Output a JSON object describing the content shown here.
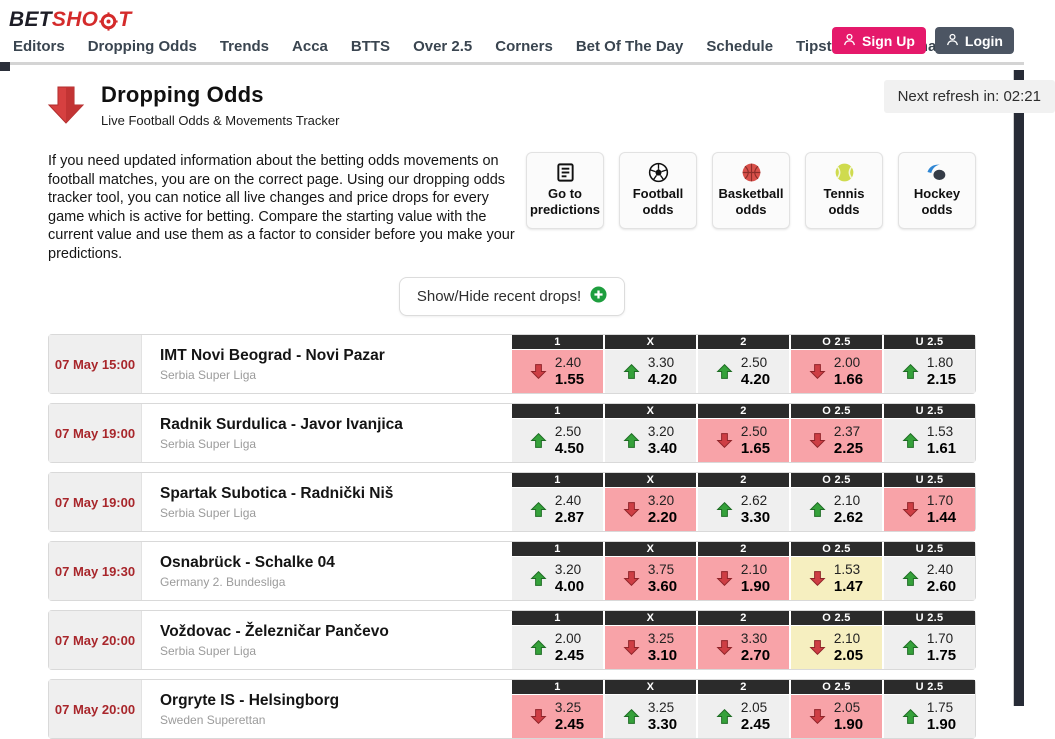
{
  "header": {
    "logo_bet": "BET",
    "logo_sho": "SHO",
    "logo_t": "T",
    "nav": [
      "Editors",
      "Dropping Odds",
      "Trends",
      "Acca",
      "BTTS",
      "Over 2.5",
      "Corners",
      "Bet Of The Day",
      "Schedule",
      "Tipsters",
      "Bookmakers"
    ],
    "signup_label": "Sign Up",
    "login_label": "Login"
  },
  "page": {
    "title": "Dropping Odds",
    "subtitle": "Live Football Odds & Movements Tracker",
    "refresh_label": "Next refresh in: 02:21",
    "intro": "If you need updated information about the betting odds movements on football matches, you are on the correct page. Using our dropping odds tracker tool, you can notice all live changes and price drops for every game which is active for betting. Compare the starting value with the current value and use them as a factor to consider before you make your predictions.",
    "show_hide_label": "Show/Hide recent drops!"
  },
  "quick_links": [
    {
      "label": "Go to predictions",
      "icon": "predictions-icon"
    },
    {
      "label": "Football odds",
      "icon": "football-icon"
    },
    {
      "label": "Basketball odds",
      "icon": "basketball-icon"
    },
    {
      "label": "Tennis odds",
      "icon": "tennis-icon"
    },
    {
      "label": "Hockey odds",
      "icon": "hockey-icon"
    }
  ],
  "odds_table": {
    "columns": [
      "1",
      "X",
      "2",
      "O 2.5",
      "U 2.5"
    ],
    "matches": [
      {
        "datetime": "07 May 15:00",
        "match": "IMT Novi Beograd - Novi Pazar",
        "league": "Serbia Super Liga",
        "odds": [
          {
            "market": "1",
            "direction": "down",
            "start": "2.40",
            "current": "1.55",
            "highlight": "strong"
          },
          {
            "market": "X",
            "direction": "up",
            "start": "3.30",
            "current": "4.20",
            "highlight": "none"
          },
          {
            "market": "2",
            "direction": "up",
            "start": "2.50",
            "current": "4.20",
            "highlight": "none"
          },
          {
            "market": "O 2.5",
            "direction": "down",
            "start": "2.00",
            "current": "1.66",
            "highlight": "strong"
          },
          {
            "market": "U 2.5",
            "direction": "up",
            "start": "1.80",
            "current": "2.15",
            "highlight": "none"
          }
        ]
      },
      {
        "datetime": "07 May 19:00",
        "match": "Radnik Surdulica - Javor Ivanjica",
        "league": "Serbia Super Liga",
        "odds": [
          {
            "market": "1",
            "direction": "up",
            "start": "2.50",
            "current": "4.50",
            "highlight": "none"
          },
          {
            "market": "X",
            "direction": "up",
            "start": "3.20",
            "current": "3.40",
            "highlight": "none"
          },
          {
            "market": "2",
            "direction": "down",
            "start": "2.50",
            "current": "1.65",
            "highlight": "strong"
          },
          {
            "market": "O 2.5",
            "direction": "down",
            "start": "2.37",
            "current": "2.25",
            "highlight": "strong"
          },
          {
            "market": "U 2.5",
            "direction": "up",
            "start": "1.53",
            "current": "1.61",
            "highlight": "none"
          }
        ]
      },
      {
        "datetime": "07 May 19:00",
        "match": "Spartak Subotica - Radnički Niš",
        "league": "Serbia Super Liga",
        "odds": [
          {
            "market": "1",
            "direction": "up",
            "start": "2.40",
            "current": "2.87",
            "highlight": "none"
          },
          {
            "market": "X",
            "direction": "down",
            "start": "3.20",
            "current": "2.20",
            "highlight": "strong"
          },
          {
            "market": "2",
            "direction": "up",
            "start": "2.62",
            "current": "3.30",
            "highlight": "none"
          },
          {
            "market": "O 2.5",
            "direction": "up",
            "start": "2.10",
            "current": "2.62",
            "highlight": "none"
          },
          {
            "market": "U 2.5",
            "direction": "down",
            "start": "1.70",
            "current": "1.44",
            "highlight": "strong"
          }
        ]
      },
      {
        "datetime": "07 May 19:30",
        "match": "Osnabrück - Schalke 04",
        "league": "Germany 2. Bundesliga",
        "odds": [
          {
            "market": "1",
            "direction": "up",
            "start": "3.20",
            "current": "4.00",
            "highlight": "none"
          },
          {
            "market": "X",
            "direction": "down",
            "start": "3.75",
            "current": "3.60",
            "highlight": "strong"
          },
          {
            "market": "2",
            "direction": "down",
            "start": "2.10",
            "current": "1.90",
            "highlight": "strong"
          },
          {
            "market": "O 2.5",
            "direction": "down",
            "start": "1.53",
            "current": "1.47",
            "highlight": "mild"
          },
          {
            "market": "U 2.5",
            "direction": "up",
            "start": "2.40",
            "current": "2.60",
            "highlight": "none"
          }
        ]
      },
      {
        "datetime": "07 May 20:00",
        "match": "Voždovac - Železničar Pančevo",
        "league": "Serbia Super Liga",
        "odds": [
          {
            "market": "1",
            "direction": "up",
            "start": "2.00",
            "current": "2.45",
            "highlight": "none"
          },
          {
            "market": "X",
            "direction": "down",
            "start": "3.25",
            "current": "3.10",
            "highlight": "strong"
          },
          {
            "market": "2",
            "direction": "down",
            "start": "3.30",
            "current": "2.70",
            "highlight": "strong"
          },
          {
            "market": "O 2.5",
            "direction": "down",
            "start": "2.10",
            "current": "2.05",
            "highlight": "mild"
          },
          {
            "market": "U 2.5",
            "direction": "up",
            "start": "1.70",
            "current": "1.75",
            "highlight": "none"
          }
        ]
      },
      {
        "datetime": "07 May 20:00",
        "match": "Orgryte IS - Helsingborg",
        "league": "Sweden Superettan",
        "odds": [
          {
            "market": "1",
            "direction": "down",
            "start": "3.25",
            "current": "2.45",
            "highlight": "strong"
          },
          {
            "market": "X",
            "direction": "up",
            "start": "3.25",
            "current": "3.30",
            "highlight": "none"
          },
          {
            "market": "2",
            "direction": "up",
            "start": "2.05",
            "current": "2.45",
            "highlight": "none"
          },
          {
            "market": "O 2.5",
            "direction": "down",
            "start": "2.05",
            "current": "1.90",
            "highlight": "strong"
          },
          {
            "market": "U 2.5",
            "direction": "up",
            "start": "1.75",
            "current": "1.90",
            "highlight": "none"
          }
        ]
      }
    ]
  },
  "colors": {
    "signup_pink": "#e5196b",
    "login_slate": "#4c5563",
    "logo_red": "#d42b2b",
    "drop_cell_pink": "#f8a3a8",
    "mild_drop_yellow": "#f6efc0",
    "rise_cell_gray": "#efefef",
    "arrow_up_green": "#35a13a",
    "arrow_down_red": "#ce3e44",
    "time_red": "#a8262b",
    "table_header_dark": "#2b2b2b"
  }
}
